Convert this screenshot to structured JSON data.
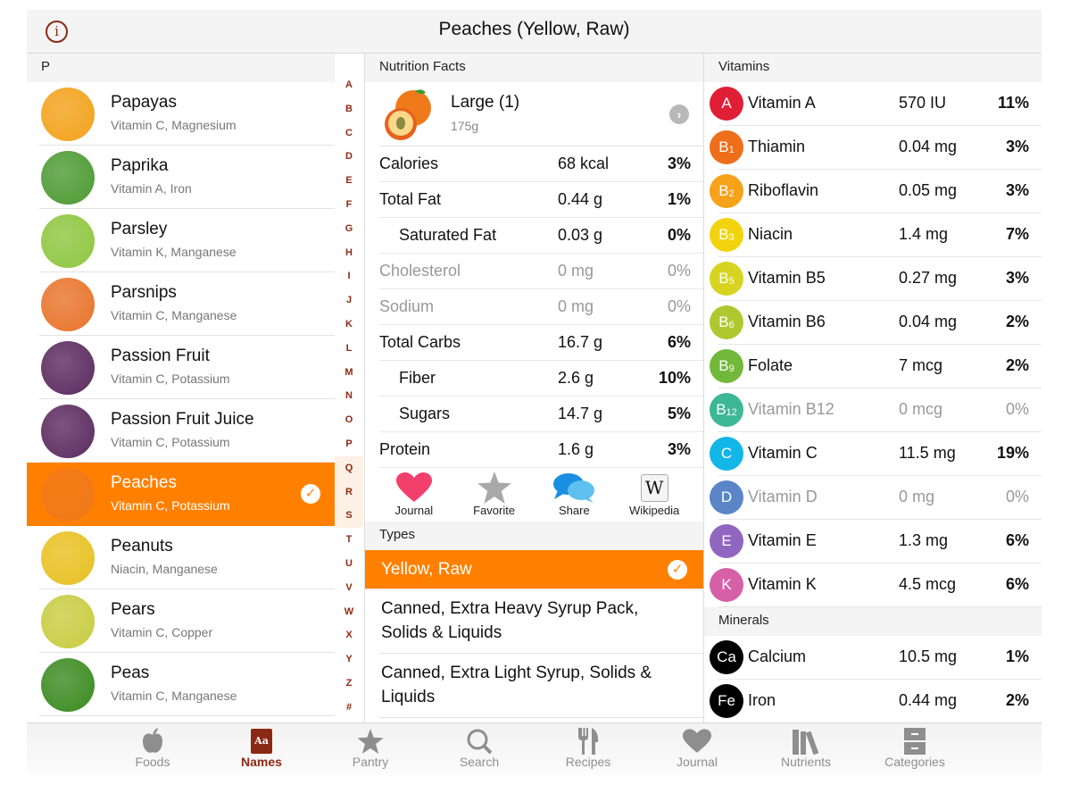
{
  "header": {
    "title": "Peaches (Yellow, Raw)",
    "info_icon": "info-icon"
  },
  "food_list": {
    "section": "P",
    "items": [
      {
        "name": "Papayas",
        "nutrients": "Vitamin C, Magnesium",
        "color": "#f2a21a"
      },
      {
        "name": "Paprika",
        "nutrients": "Vitamin A, Iron",
        "color": "#4c9a32"
      },
      {
        "name": "Parsley",
        "nutrients": "Vitamin K, Manganese",
        "color": "#8ec63f"
      },
      {
        "name": "Parsnips",
        "nutrients": "Vitamin C, Manganese",
        "color": "#e8732a"
      },
      {
        "name": "Passion Fruit",
        "nutrients": "Vitamin C, Potassium",
        "color": "#5a2a5e"
      },
      {
        "name": "Passion Fruit Juice",
        "nutrients": "Vitamin C, Potassium",
        "color": "#5a2a5e"
      },
      {
        "name": "Peaches",
        "nutrients": "Vitamin C, Potassium",
        "color": "#f07a1a",
        "selected": true
      },
      {
        "name": "Peanuts",
        "nutrients": "Niacin, Manganese",
        "color": "#e8c020"
      },
      {
        "name": "Pears",
        "nutrients": "Vitamin C, Copper",
        "color": "#c8cc40"
      },
      {
        "name": "Peas",
        "nutrients": "Vitamin C, Manganese",
        "color": "#3a8a20"
      }
    ]
  },
  "alpha_index": [
    "A",
    "B",
    "C",
    "D",
    "E",
    "F",
    "G",
    "H",
    "I",
    "J",
    "K",
    "L",
    "M",
    "N",
    "O",
    "P",
    "Q",
    "R",
    "S",
    "T",
    "U",
    "V",
    "W",
    "X",
    "Y",
    "Z",
    "#"
  ],
  "nutrition": {
    "header": "Nutrition Facts",
    "serving": {
      "label": "Large (1)",
      "grams": "175g"
    },
    "rows": [
      {
        "name": "Calories",
        "value": "68 kcal",
        "pct": "3%"
      },
      {
        "name": "Total Fat",
        "value": "0.44 g",
        "pct": "1%"
      },
      {
        "name": "Saturated Fat",
        "value": "0.03 g",
        "pct": "0%",
        "indent": true
      },
      {
        "name": "Cholesterol",
        "value": "0 mg",
        "pct": "0%",
        "dim": true
      },
      {
        "name": "Sodium",
        "value": "0 mg",
        "pct": "0%",
        "dim": true
      },
      {
        "name": "Total Carbs",
        "value": "16.7 g",
        "pct": "6%"
      },
      {
        "name": "Fiber",
        "value": "2.6 g",
        "pct": "10%",
        "indent": true
      },
      {
        "name": "Sugars",
        "value": "14.7 g",
        "pct": "5%",
        "indent": true
      },
      {
        "name": "Protein",
        "value": "1.6 g",
        "pct": "3%"
      }
    ],
    "actions": [
      {
        "label": "Journal",
        "icon": "heart-icon"
      },
      {
        "label": "Favorite",
        "icon": "star-icon"
      },
      {
        "label": "Share",
        "icon": "speech-bubbles-icon"
      },
      {
        "label": "Wikipedia",
        "icon": "wikipedia-icon"
      }
    ]
  },
  "types": {
    "header": "Types",
    "items": [
      {
        "label": "Yellow, Raw",
        "selected": true
      },
      {
        "label": "Canned, Extra Heavy Syrup Pack, Solids & Liquids"
      },
      {
        "label": "Canned, Extra Light Syrup, Solids & Liquids"
      }
    ]
  },
  "vitamins": {
    "header": "Vitamins",
    "items": [
      {
        "badge": "A",
        "sub": "",
        "color": "#e01e36",
        "name": "Vitamin A",
        "value": "570 IU",
        "pct": "11%"
      },
      {
        "badge": "B",
        "sub": "1",
        "color": "#ee6e1a",
        "name": "Thiamin",
        "value": "0.04 mg",
        "pct": "3%"
      },
      {
        "badge": "B",
        "sub": "2",
        "color": "#f6a21a",
        "name": "Riboflavin",
        "value": "0.05 mg",
        "pct": "3%"
      },
      {
        "badge": "B",
        "sub": "3",
        "color": "#f2d40e",
        "name": "Niacin",
        "value": "1.4 mg",
        "pct": "7%"
      },
      {
        "badge": "B",
        "sub": "5",
        "color": "#d6d420",
        "name": "Vitamin B5",
        "value": "0.27 mg",
        "pct": "3%"
      },
      {
        "badge": "B",
        "sub": "6",
        "color": "#b0c830",
        "name": "Vitamin B6",
        "value": "0.04 mg",
        "pct": "2%"
      },
      {
        "badge": "B",
        "sub": "9",
        "color": "#72b83a",
        "name": "Folate",
        "value": "7 mcg",
        "pct": "2%"
      },
      {
        "badge": "B",
        "sub": "12",
        "color": "#3db896",
        "name": "Vitamin B12",
        "value": "0 mcg",
        "pct": "0%",
        "dim": true
      },
      {
        "badge": "C",
        "sub": "",
        "color": "#12b6e8",
        "name": "Vitamin C",
        "value": "11.5 mg",
        "pct": "19%"
      },
      {
        "badge": "D",
        "sub": "",
        "color": "#5a86c8",
        "name": "Vitamin D",
        "value": "0 mg",
        "pct": "0%",
        "dim": true
      },
      {
        "badge": "E",
        "sub": "",
        "color": "#9066c0",
        "name": "Vitamin E",
        "value": "1.3 mg",
        "pct": "6%"
      },
      {
        "badge": "K",
        "sub": "",
        "color": "#d660a8",
        "name": "Vitamin K",
        "value": "4.5 mcg",
        "pct": "6%"
      }
    ]
  },
  "minerals": {
    "header": "Minerals",
    "items": [
      {
        "badge": "Ca",
        "color": "#000000",
        "name": "Calcium",
        "value": "10.5 mg",
        "pct": "1%"
      },
      {
        "badge": "Fe",
        "color": "#000000",
        "name": "Iron",
        "value": "0.44 mg",
        "pct": "2%"
      }
    ]
  },
  "tabbar": {
    "tabs": [
      {
        "label": "Foods",
        "icon": "apple-icon"
      },
      {
        "label": "Names",
        "icon": "dictionary-icon",
        "active": true
      },
      {
        "label": "Pantry",
        "icon": "star-icon"
      },
      {
        "label": "Search",
        "icon": "search-icon"
      },
      {
        "label": "Recipes",
        "icon": "fork-knife-icon"
      },
      {
        "label": "Journal",
        "icon": "heart-icon"
      },
      {
        "label": "Nutrients",
        "icon": "books-icon"
      },
      {
        "label": "Categories",
        "icon": "cabinet-icon"
      }
    ]
  },
  "colors": {
    "accent": "#ff8000",
    "brand": "#8a2a14"
  }
}
